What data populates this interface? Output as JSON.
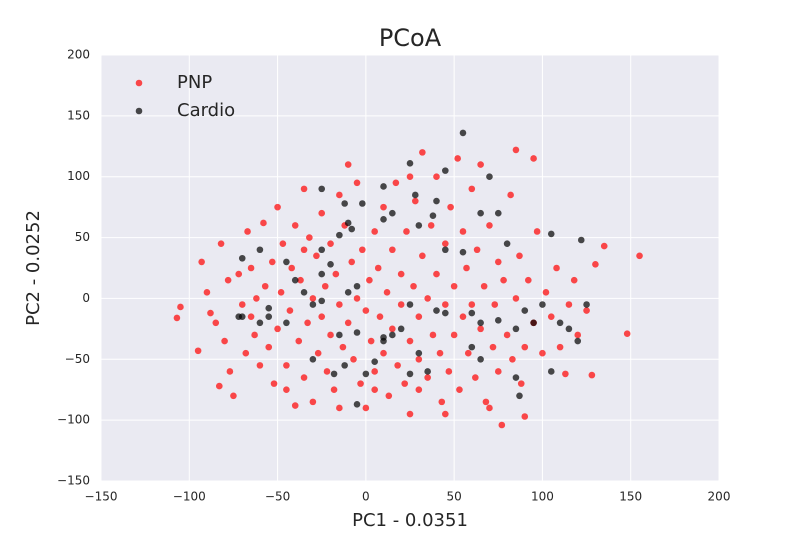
{
  "chart_data": {
    "type": "scatter",
    "title": "PCoA",
    "x_label": "PC1 - 0.0351",
    "y_label": "PC2 - 0.0252",
    "xlim": [
      -150,
      200
    ],
    "ylim": [
      -150,
      200
    ],
    "xticks": [
      {
        "value": -150,
        "label": "−150"
      },
      {
        "value": -100,
        "label": "−100"
      },
      {
        "value": -50,
        "label": "−50"
      },
      0,
      50,
      100,
      150,
      200
    ],
    "yticks": [
      {
        "value": -150,
        "label": "−150"
      },
      {
        "value": -100,
        "label": "−100"
      },
      {
        "value": -50,
        "label": "−50"
      },
      0,
      50,
      100,
      150,
      200
    ],
    "grid": true,
    "legend": "upper left",
    "alpha": 0.7,
    "series": [
      {
        "name": "PNP",
        "color": "#ff0000",
        "x": [
          -105,
          -107,
          -95,
          -93,
          -90,
          -88,
          -85,
          -82,
          -80,
          -78,
          -77,
          -75,
          -83,
          -72,
          -70,
          -68,
          -67,
          -65,
          -63,
          -62,
          -60,
          -58,
          -57,
          -55,
          -53,
          -52,
          -50,
          -50,
          -48,
          -47,
          -45,
          -43,
          -42,
          -40,
          -40,
          -38,
          -37,
          -35,
          -35,
          -33,
          -32,
          -30,
          -30,
          -28,
          -27,
          -25,
          -25,
          -23,
          -22,
          -20,
          -20,
          -18,
          -17,
          -15,
          -15,
          -13,
          -12,
          -10,
          -10,
          -8,
          -7,
          -5,
          -5,
          -3,
          -2,
          0,
          0,
          2,
          3,
          5,
          5,
          7,
          8,
          10,
          10,
          12,
          13,
          15,
          15,
          17,
          18,
          20,
          20,
          22,
          23,
          25,
          25,
          27,
          28,
          30,
          30,
          32,
          32,
          35,
          35,
          37,
          38,
          40,
          40,
          42,
          43,
          45,
          45,
          47,
          48,
          50,
          50,
          52,
          53,
          55,
          55,
          57,
          58,
          60,
          60,
          62,
          63,
          65,
          65,
          67,
          68,
          70,
          72,
          73,
          75,
          75,
          77,
          78,
          80,
          82,
          83,
          85,
          85,
          87,
          88,
          90,
          90,
          92,
          95,
          97,
          100,
          102,
          105,
          108,
          110,
          113,
          115,
          118,
          120,
          125,
          128,
          130,
          135,
          148,
          155,
          -65,
          -45,
          -35,
          -15,
          5,
          25,
          45,
          70,
          95,
          30
        ],
        "values": [
          -7,
          -16,
          -43,
          30,
          5,
          -12,
          -20,
          45,
          -35,
          15,
          -60,
          -80,
          -72,
          20,
          -5,
          -45,
          55,
          25,
          -30,
          0,
          -55,
          62,
          10,
          -40,
          30,
          -70,
          75,
          -25,
          5,
          45,
          -55,
          -10,
          25,
          -88,
          60,
          -35,
          15,
          90,
          -65,
          -20,
          50,
          0,
          -85,
          35,
          -45,
          70,
          -15,
          10,
          -60,
          45,
          -30,
          -75,
          20,
          85,
          -5,
          -40,
          60,
          110,
          -20,
          30,
          -50,
          95,
          0,
          -70,
          40,
          -10,
          -90,
          15,
          -35,
          55,
          -60,
          25,
          -15,
          75,
          -45,
          5,
          -80,
          40,
          -25,
          95,
          -55,
          20,
          -5,
          -70,
          55,
          -35,
          -95,
          10,
          80,
          -15,
          -50,
          120,
          35,
          -65,
          0,
          60,
          -30,
          100,
          20,
          -45,
          -85,
          45,
          -5,
          -60,
          75,
          10,
          -30,
          115,
          -75,
          55,
          -15,
          25,
          -45,
          90,
          -5,
          -65,
          40,
          -25,
          110,
          10,
          -85,
          60,
          -40,
          -5,
          30,
          -60,
          -104,
          15,
          -30,
          85,
          -50,
          122,
          0,
          35,
          -70,
          -97,
          -40,
          15,
          -20,
          55,
          -45,
          5,
          -15,
          25,
          -40,
          -62,
          -5,
          15,
          -30,
          -10,
          -63,
          28,
          43,
          -29,
          35,
          -15,
          -75,
          40,
          -90,
          -75,
          100,
          -95,
          -90,
          115,
          -75
        ]
      },
      {
        "name": "Cardio",
        "color": "#000000",
        "x": [
          55,
          25,
          105,
          122,
          45,
          70,
          -25,
          10,
          -12,
          -2,
          28,
          40,
          75,
          65,
          38,
          30,
          -10,
          -15,
          -8,
          10,
          15,
          55,
          45,
          80,
          -70,
          -60,
          -45,
          -25,
          -25,
          -20,
          -40,
          -55,
          -55,
          -60,
          -70,
          -72,
          -45,
          -30,
          -35,
          -25,
          -10,
          -5,
          -5,
          -15,
          -30,
          -12,
          -18,
          0,
          5,
          10,
          15,
          20,
          25,
          40,
          45,
          60,
          65,
          75,
          90,
          95,
          100,
          110,
          115,
          125,
          85,
          87,
          105,
          120,
          85,
          60,
          65,
          -5,
          25,
          30,
          35,
          10
        ],
        "values": [
          136,
          111,
          53,
          48,
          105,
          100,
          90,
          92,
          78,
          78,
          85,
          80,
          70,
          70,
          68,
          60,
          62,
          52,
          57,
          65,
          70,
          38,
          40,
          45,
          33,
          40,
          30,
          40,
          20,
          28,
          15,
          -8,
          -15,
          -20,
          -15,
          -15,
          -20,
          -5,
          5,
          -2,
          5,
          10,
          -28,
          -30,
          -50,
          -55,
          -62,
          -62,
          -52,
          -32,
          -30,
          -25,
          -5,
          -10,
          -12,
          -12,
          -20,
          -18,
          -10,
          -20,
          -5,
          -20,
          -25,
          -5,
          -65,
          -80,
          -60,
          -35,
          -25,
          -40,
          -50,
          -87,
          -62,
          -45,
          -60,
          -35
        ]
      }
    ]
  }
}
